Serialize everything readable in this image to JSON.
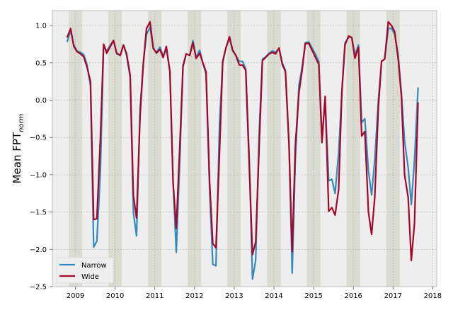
{
  "chart_data": {
    "type": "line",
    "title": "",
    "xlabel": "",
    "ylabel_main": "Mean FPT",
    "ylabel_sub": "norm",
    "xlim": [
      2008.42,
      2018.1
    ],
    "ylim": [
      -2.5,
      1.2
    ],
    "xticks": [
      2009,
      2010,
      2011,
      2012,
      2013,
      2014,
      2015,
      2016,
      2017,
      2018
    ],
    "xtick_labels": [
      "2009",
      "2010",
      "2011",
      "2012",
      "2013",
      "2014",
      "2015",
      "2016",
      "2017",
      "2018"
    ],
    "yticks": [
      -2.5,
      -2.0,
      -1.5,
      -1.0,
      -0.5,
      0.0,
      0.5,
      1.0
    ],
    "ytick_labels": [
      "−2.5",
      "−2.0",
      "−1.5",
      "−1.0",
      "−0.5",
      "0.0",
      "0.5",
      "1.0"
    ],
    "grid": true,
    "legend_position": "lower-left",
    "background_color": "#eeeeee",
    "shaded_intervals": [
      [
        2008.83,
        2009.17
      ],
      [
        2009.83,
        2010.17
      ],
      [
        2010.83,
        2011.17
      ],
      [
        2011.83,
        2012.17
      ],
      [
        2012.83,
        2013.17
      ],
      [
        2013.83,
        2014.17
      ],
      [
        2014.83,
        2015.17
      ],
      [
        2015.83,
        2016.17
      ],
      [
        2016.83,
        2017.17
      ]
    ],
    "series": [
      {
        "name": "Narrow",
        "color": "#348abd",
        "points": [
          [
            2008.79,
            0.78
          ],
          [
            2008.88,
            0.93
          ],
          [
            2008.96,
            0.74
          ],
          [
            2009.04,
            0.66
          ],
          [
            2009.13,
            0.64
          ],
          [
            2009.21,
            0.61
          ],
          [
            2009.29,
            0.48
          ],
          [
            2009.38,
            0.19
          ],
          [
            2009.46,
            -1.97
          ],
          [
            2009.54,
            -1.89
          ],
          [
            2009.63,
            -0.95
          ],
          [
            2009.71,
            0.73
          ],
          [
            2009.79,
            0.66
          ],
          [
            2009.88,
            0.74
          ],
          [
            2009.96,
            0.8
          ],
          [
            2010.04,
            0.62
          ],
          [
            2010.13,
            0.6
          ],
          [
            2010.21,
            0.74
          ],
          [
            2010.29,
            0.6
          ],
          [
            2010.38,
            0.3
          ],
          [
            2010.46,
            -1.5
          ],
          [
            2010.54,
            -1.82
          ],
          [
            2010.63,
            -0.1
          ],
          [
            2010.71,
            0.5
          ],
          [
            2010.79,
            0.88
          ],
          [
            2010.88,
            0.98
          ],
          [
            2010.96,
            0.69
          ],
          [
            2011.04,
            0.64
          ],
          [
            2011.13,
            0.71
          ],
          [
            2011.21,
            0.59
          ],
          [
            2011.29,
            0.68
          ],
          [
            2011.38,
            0.4
          ],
          [
            2011.46,
            -1.1
          ],
          [
            2011.54,
            -2.04
          ],
          [
            2011.63,
            -0.8
          ],
          [
            2011.71,
            0.47
          ],
          [
            2011.79,
            0.62
          ],
          [
            2011.88,
            0.6
          ],
          [
            2011.96,
            0.8
          ],
          [
            2012.04,
            0.57
          ],
          [
            2012.13,
            0.67
          ],
          [
            2012.21,
            0.5
          ],
          [
            2012.29,
            0.35
          ],
          [
            2012.38,
            -1.2
          ],
          [
            2012.46,
            -2.2
          ],
          [
            2012.54,
            -2.22
          ],
          [
            2012.63,
            -0.3
          ],
          [
            2012.71,
            0.5
          ],
          [
            2012.79,
            0.7
          ],
          [
            2012.88,
            0.83
          ],
          [
            2012.96,
            0.66
          ],
          [
            2013.04,
            0.6
          ],
          [
            2013.13,
            0.52
          ],
          [
            2013.21,
            0.52
          ],
          [
            2013.29,
            0.42
          ],
          [
            2013.38,
            -0.8
          ],
          [
            2013.46,
            -2.4
          ],
          [
            2013.54,
            -2.15
          ],
          [
            2013.63,
            -0.4
          ],
          [
            2013.71,
            0.55
          ],
          [
            2013.79,
            0.58
          ],
          [
            2013.88,
            0.63
          ],
          [
            2013.96,
            0.66
          ],
          [
            2014.04,
            0.64
          ],
          [
            2014.13,
            0.69
          ],
          [
            2014.21,
            0.5
          ],
          [
            2014.29,
            0.4
          ],
          [
            2014.38,
            -0.6
          ],
          [
            2014.46,
            -2.32
          ],
          [
            2014.54,
            -0.8
          ],
          [
            2014.63,
            0.2
          ],
          [
            2014.71,
            0.44
          ],
          [
            2014.79,
            0.77
          ],
          [
            2014.88,
            0.78
          ],
          [
            2014.96,
            0.7
          ],
          [
            2015.04,
            0.62
          ],
          [
            2015.13,
            0.52
          ],
          [
            2015.21,
            -0.5
          ],
          [
            2015.29,
            0.0
          ],
          [
            2015.38,
            -1.08
          ],
          [
            2015.46,
            -1.06
          ],
          [
            2015.54,
            -1.25
          ],
          [
            2015.63,
            -0.7
          ],
          [
            2015.71,
            0.1
          ],
          [
            2015.79,
            0.77
          ],
          [
            2015.88,
            0.84
          ],
          [
            2015.96,
            0.84
          ],
          [
            2016.04,
            0.6
          ],
          [
            2016.13,
            0.74
          ],
          [
            2016.21,
            -0.3
          ],
          [
            2016.29,
            -0.25
          ],
          [
            2016.38,
            -0.95
          ],
          [
            2016.46,
            -1.27
          ],
          [
            2016.54,
            -0.8
          ],
          [
            2016.63,
            0.0
          ],
          [
            2016.71,
            0.52
          ],
          [
            2016.79,
            0.55
          ],
          [
            2016.88,
            0.96
          ],
          [
            2016.96,
            0.96
          ],
          [
            2017.04,
            0.89
          ],
          [
            2017.13,
            0.6
          ],
          [
            2017.21,
            0.1
          ],
          [
            2017.29,
            -0.55
          ],
          [
            2017.38,
            -0.9
          ],
          [
            2017.46,
            -1.4
          ],
          [
            2017.54,
            -0.8
          ],
          [
            2017.63,
            0.17
          ]
        ]
      },
      {
        "name": "Wide",
        "color": "#a60628",
        "points": [
          [
            2008.79,
            0.84
          ],
          [
            2008.88,
            0.96
          ],
          [
            2008.96,
            0.72
          ],
          [
            2009.04,
            0.65
          ],
          [
            2009.13,
            0.62
          ],
          [
            2009.21,
            0.58
          ],
          [
            2009.29,
            0.45
          ],
          [
            2009.38,
            0.25
          ],
          [
            2009.46,
            -1.6
          ],
          [
            2009.54,
            -1.59
          ],
          [
            2009.63,
            -0.5
          ],
          [
            2009.71,
            0.75
          ],
          [
            2009.79,
            0.63
          ],
          [
            2009.88,
            0.72
          ],
          [
            2009.96,
            0.8
          ],
          [
            2010.04,
            0.63
          ],
          [
            2010.13,
            0.6
          ],
          [
            2010.21,
            0.74
          ],
          [
            2010.29,
            0.62
          ],
          [
            2010.38,
            0.33
          ],
          [
            2010.46,
            -1.28
          ],
          [
            2010.54,
            -1.58
          ],
          [
            2010.63,
            -0.2
          ],
          [
            2010.71,
            0.48
          ],
          [
            2010.79,
            0.96
          ],
          [
            2010.88,
            1.05
          ],
          [
            2010.96,
            0.7
          ],
          [
            2011.04,
            0.63
          ],
          [
            2011.13,
            0.68
          ],
          [
            2011.21,
            0.57
          ],
          [
            2011.29,
            0.72
          ],
          [
            2011.38,
            0.38
          ],
          [
            2011.46,
            -1.1
          ],
          [
            2011.54,
            -1.72
          ],
          [
            2011.63,
            -0.6
          ],
          [
            2011.71,
            0.45
          ],
          [
            2011.79,
            0.62
          ],
          [
            2011.88,
            0.6
          ],
          [
            2011.96,
            0.77
          ],
          [
            2012.04,
            0.56
          ],
          [
            2012.13,
            0.63
          ],
          [
            2012.21,
            0.5
          ],
          [
            2012.29,
            0.38
          ],
          [
            2012.38,
            -1.1
          ],
          [
            2012.46,
            -1.92
          ],
          [
            2012.54,
            -1.98
          ],
          [
            2012.63,
            -0.7
          ],
          [
            2012.71,
            0.52
          ],
          [
            2012.79,
            0.7
          ],
          [
            2012.88,
            0.85
          ],
          [
            2012.96,
            0.67
          ],
          [
            2013.04,
            0.6
          ],
          [
            2013.13,
            0.47
          ],
          [
            2013.21,
            0.47
          ],
          [
            2013.29,
            0.4
          ],
          [
            2013.38,
            -0.9
          ],
          [
            2013.46,
            -2.07
          ],
          [
            2013.54,
            -1.9
          ],
          [
            2013.63,
            -0.6
          ],
          [
            2013.71,
            0.53
          ],
          [
            2013.79,
            0.57
          ],
          [
            2013.88,
            0.62
          ],
          [
            2013.96,
            0.64
          ],
          [
            2014.04,
            0.62
          ],
          [
            2014.13,
            0.7
          ],
          [
            2014.21,
            0.48
          ],
          [
            2014.29,
            0.38
          ],
          [
            2014.38,
            -0.6
          ],
          [
            2014.46,
            -2.03
          ],
          [
            2014.54,
            -0.6
          ],
          [
            2014.63,
            0.1
          ],
          [
            2014.71,
            0.4
          ],
          [
            2014.79,
            0.76
          ],
          [
            2014.88,
            0.76
          ],
          [
            2014.96,
            0.67
          ],
          [
            2015.04,
            0.58
          ],
          [
            2015.13,
            0.48
          ],
          [
            2015.21,
            -0.57
          ],
          [
            2015.29,
            0.05
          ],
          [
            2015.38,
            -1.49
          ],
          [
            2015.46,
            -1.44
          ],
          [
            2015.54,
            -1.54
          ],
          [
            2015.63,
            -1.2
          ],
          [
            2015.71,
            0.1
          ],
          [
            2015.79,
            0.74
          ],
          [
            2015.88,
            0.86
          ],
          [
            2015.96,
            0.84
          ],
          [
            2016.04,
            0.56
          ],
          [
            2016.13,
            0.71
          ],
          [
            2016.21,
            -0.48
          ],
          [
            2016.29,
            -0.42
          ],
          [
            2016.38,
            -1.5
          ],
          [
            2016.46,
            -1.8
          ],
          [
            2016.54,
            -1.3
          ],
          [
            2016.63,
            -0.1
          ],
          [
            2016.71,
            0.52
          ],
          [
            2016.79,
            0.55
          ],
          [
            2016.88,
            1.05
          ],
          [
            2016.96,
            1.0
          ],
          [
            2017.04,
            0.92
          ],
          [
            2017.13,
            0.55
          ],
          [
            2017.21,
            0.05
          ],
          [
            2017.29,
            -1.0
          ],
          [
            2017.38,
            -1.3
          ],
          [
            2017.46,
            -2.15
          ],
          [
            2017.54,
            -1.65
          ],
          [
            2017.63,
            -0.03
          ]
        ]
      }
    ]
  }
}
